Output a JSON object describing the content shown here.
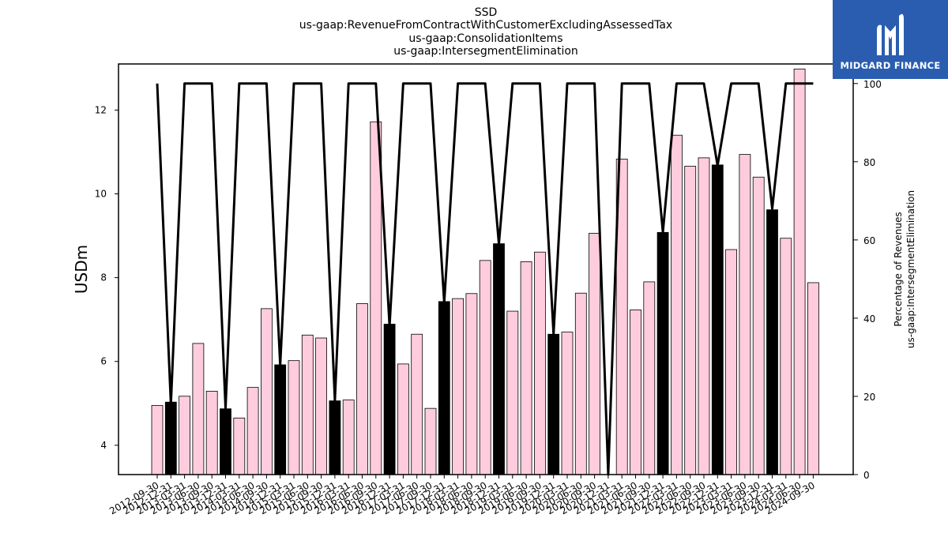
{
  "chart_data": {
    "type": "bar",
    "title_lines": [
      "SSD",
      "us-gaap:RevenueFromContractWithCustomerExcludingAssessedTax",
      "us-gaap:ConsolidationItems",
      "us-gaap:IntersegmentElimination"
    ],
    "ylabel": "USDm",
    "ylabel_right_lines": [
      "Percentage of Revenues",
      "us-gaap:IntersegmentElimination"
    ],
    "ylim": [
      3.3,
      13.1
    ],
    "ylim_right": [
      0,
      105
    ],
    "yticks": [
      4,
      6,
      8,
      10,
      12
    ],
    "yticks_right": [
      0,
      20,
      40,
      60,
      80,
      100
    ],
    "categories": [
      "2012-09-30",
      "2012-12-31",
      "2013-03-31",
      "2013-06-30",
      "2013-09-30",
      "2013-12-31",
      "2014-03-31",
      "2014-06-30",
      "2014-09-30",
      "2014-12-31",
      "2015-03-31",
      "2015-06-30",
      "2015-09-30",
      "2015-12-31",
      "2016-03-31",
      "2016-06-30",
      "2016-09-30",
      "2016-12-31",
      "2017-03-31",
      "2017-06-30",
      "2017-09-30",
      "2017-12-31",
      "2018-03-31",
      "2018-06-30",
      "2018-09-30",
      "2018-12-31",
      "2019-03-31",
      "2019-06-30",
      "2019-09-30",
      "2019-12-31",
      "2020-03-31",
      "2020-06-30",
      "2020-09-30",
      "2020-12-31",
      "2021-03-31",
      "2021-06-30",
      "2021-09-30",
      "2021-12-31",
      "2022-03-31",
      "2022-06-30",
      "2022-09-30",
      "2022-12-31",
      "2023-03-31",
      "2023-06-30",
      "2023-09-30",
      "2023-12-31",
      "2024-03-31",
      "2024-06-30",
      "2024-09-30"
    ],
    "values": [
      4.95,
      5.03,
      5.17,
      6.43,
      5.29,
      4.87,
      4.65,
      5.38,
      7.26,
      5.92,
      6.02,
      6.63,
      6.56,
      5.06,
      5.08,
      7.38,
      11.72,
      6.89,
      5.94,
      6.65,
      4.88,
      7.43,
      7.5,
      7.62,
      8.41,
      8.81,
      7.2,
      8.38,
      8.61,
      6.65,
      6.7,
      7.63,
      9.06,
      3.3,
      10.83,
      7.23,
      7.9,
      9.08,
      11.4,
      10.66,
      10.86,
      10.69,
      8.67,
      10.94,
      10.4,
      9.62,
      8.94,
      12.98,
      7.88
    ],
    "bar_colors": {
      "normal": "#ffccdd",
      "highlight": "#000000",
      "edge": "#000000"
    },
    "highlighted_categories": [
      "2012-12-31",
      "2013-12-31",
      "2014-12-31",
      "2015-12-31",
      "2016-12-31",
      "2017-12-31",
      "2018-12-31",
      "2019-12-31",
      "2021-12-31",
      "2022-12-31",
      "2023-12-31"
    ],
    "line_series": {
      "values": [
        100,
        18,
        100,
        100,
        100,
        17,
        100,
        100,
        100,
        28,
        100,
        100,
        100,
        19,
        100,
        100,
        100,
        38,
        100,
        100,
        100,
        44,
        100,
        100,
        100,
        59,
        100,
        100,
        100,
        36,
        100,
        100,
        100,
        0,
        100,
        100,
        100,
        62,
        100,
        100,
        100,
        79,
        100,
        100,
        100,
        68,
        100,
        100,
        100
      ],
      "color": "#000000"
    }
  },
  "logo": {
    "text": "MIDGARD FINANCE",
    "icon": "midgard-logo-icon",
    "background": "#2a5db0"
  }
}
